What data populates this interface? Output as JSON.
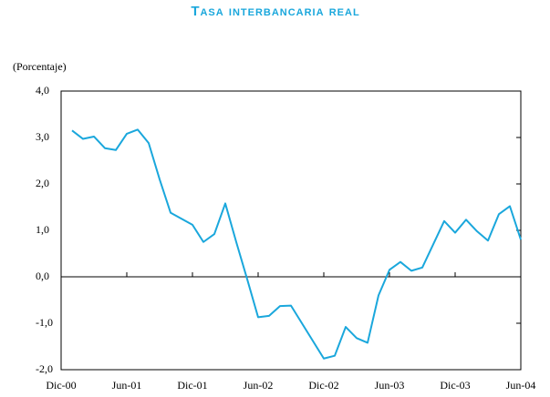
{
  "chart_data": {
    "type": "line",
    "title": "Tasa interbancaria real",
    "y_label": "(Porcentaje)",
    "x": [
      1,
      2,
      3,
      4,
      5,
      6,
      7,
      8,
      9,
      10,
      11,
      12,
      13,
      14,
      15,
      16,
      17,
      18,
      19,
      20,
      21,
      22,
      23,
      24,
      25,
      26,
      27,
      28,
      29,
      30,
      31,
      32,
      33,
      34,
      35,
      36,
      37,
      38,
      39,
      40,
      41,
      42
    ],
    "series": [
      {
        "name": "Tasa interbancaria real",
        "color": "#1aa7dc",
        "values": [
          3.15,
          2.97,
          3.02,
          2.77,
          2.73,
          3.08,
          3.17,
          2.88,
          2.1,
          1.38,
          1.25,
          1.12,
          0.75,
          0.92,
          1.58,
          0.75,
          -0.05,
          -0.87,
          -0.84,
          -0.63,
          -0.62,
          -1.0,
          -1.38,
          -1.76,
          -1.7,
          -1.08,
          -1.32,
          -1.42,
          -0.4,
          0.15,
          0.32,
          0.13,
          0.2,
          0.7,
          1.2,
          0.95,
          1.23,
          0.98,
          0.78,
          1.35,
          1.52,
          0.8
        ]
      }
    ],
    "xlim": [
      0,
      42
    ],
    "xticks": [
      {
        "value": 0,
        "label": "Dic-00"
      },
      {
        "value": 6,
        "label": "Jun-01"
      },
      {
        "value": 12,
        "label": "Dic-01"
      },
      {
        "value": 18,
        "label": "Jun-02"
      },
      {
        "value": 24,
        "label": "Dic-02"
      },
      {
        "value": 30,
        "label": "Jun-03"
      },
      {
        "value": 36,
        "label": "Dic-03"
      },
      {
        "value": 42,
        "label": "Jun-04"
      }
    ],
    "ylim": [
      -2,
      4
    ],
    "yticks": [
      {
        "value": -2,
        "label": "-2,0"
      },
      {
        "value": -1,
        "label": "-1,0"
      },
      {
        "value": 0,
        "label": "0,0"
      },
      {
        "value": 1,
        "label": "1,0"
      },
      {
        "value": 2,
        "label": "2,0"
      },
      {
        "value": 3,
        "label": "3,0"
      },
      {
        "value": 4,
        "label": "4,0"
      }
    ],
    "grid": false
  }
}
